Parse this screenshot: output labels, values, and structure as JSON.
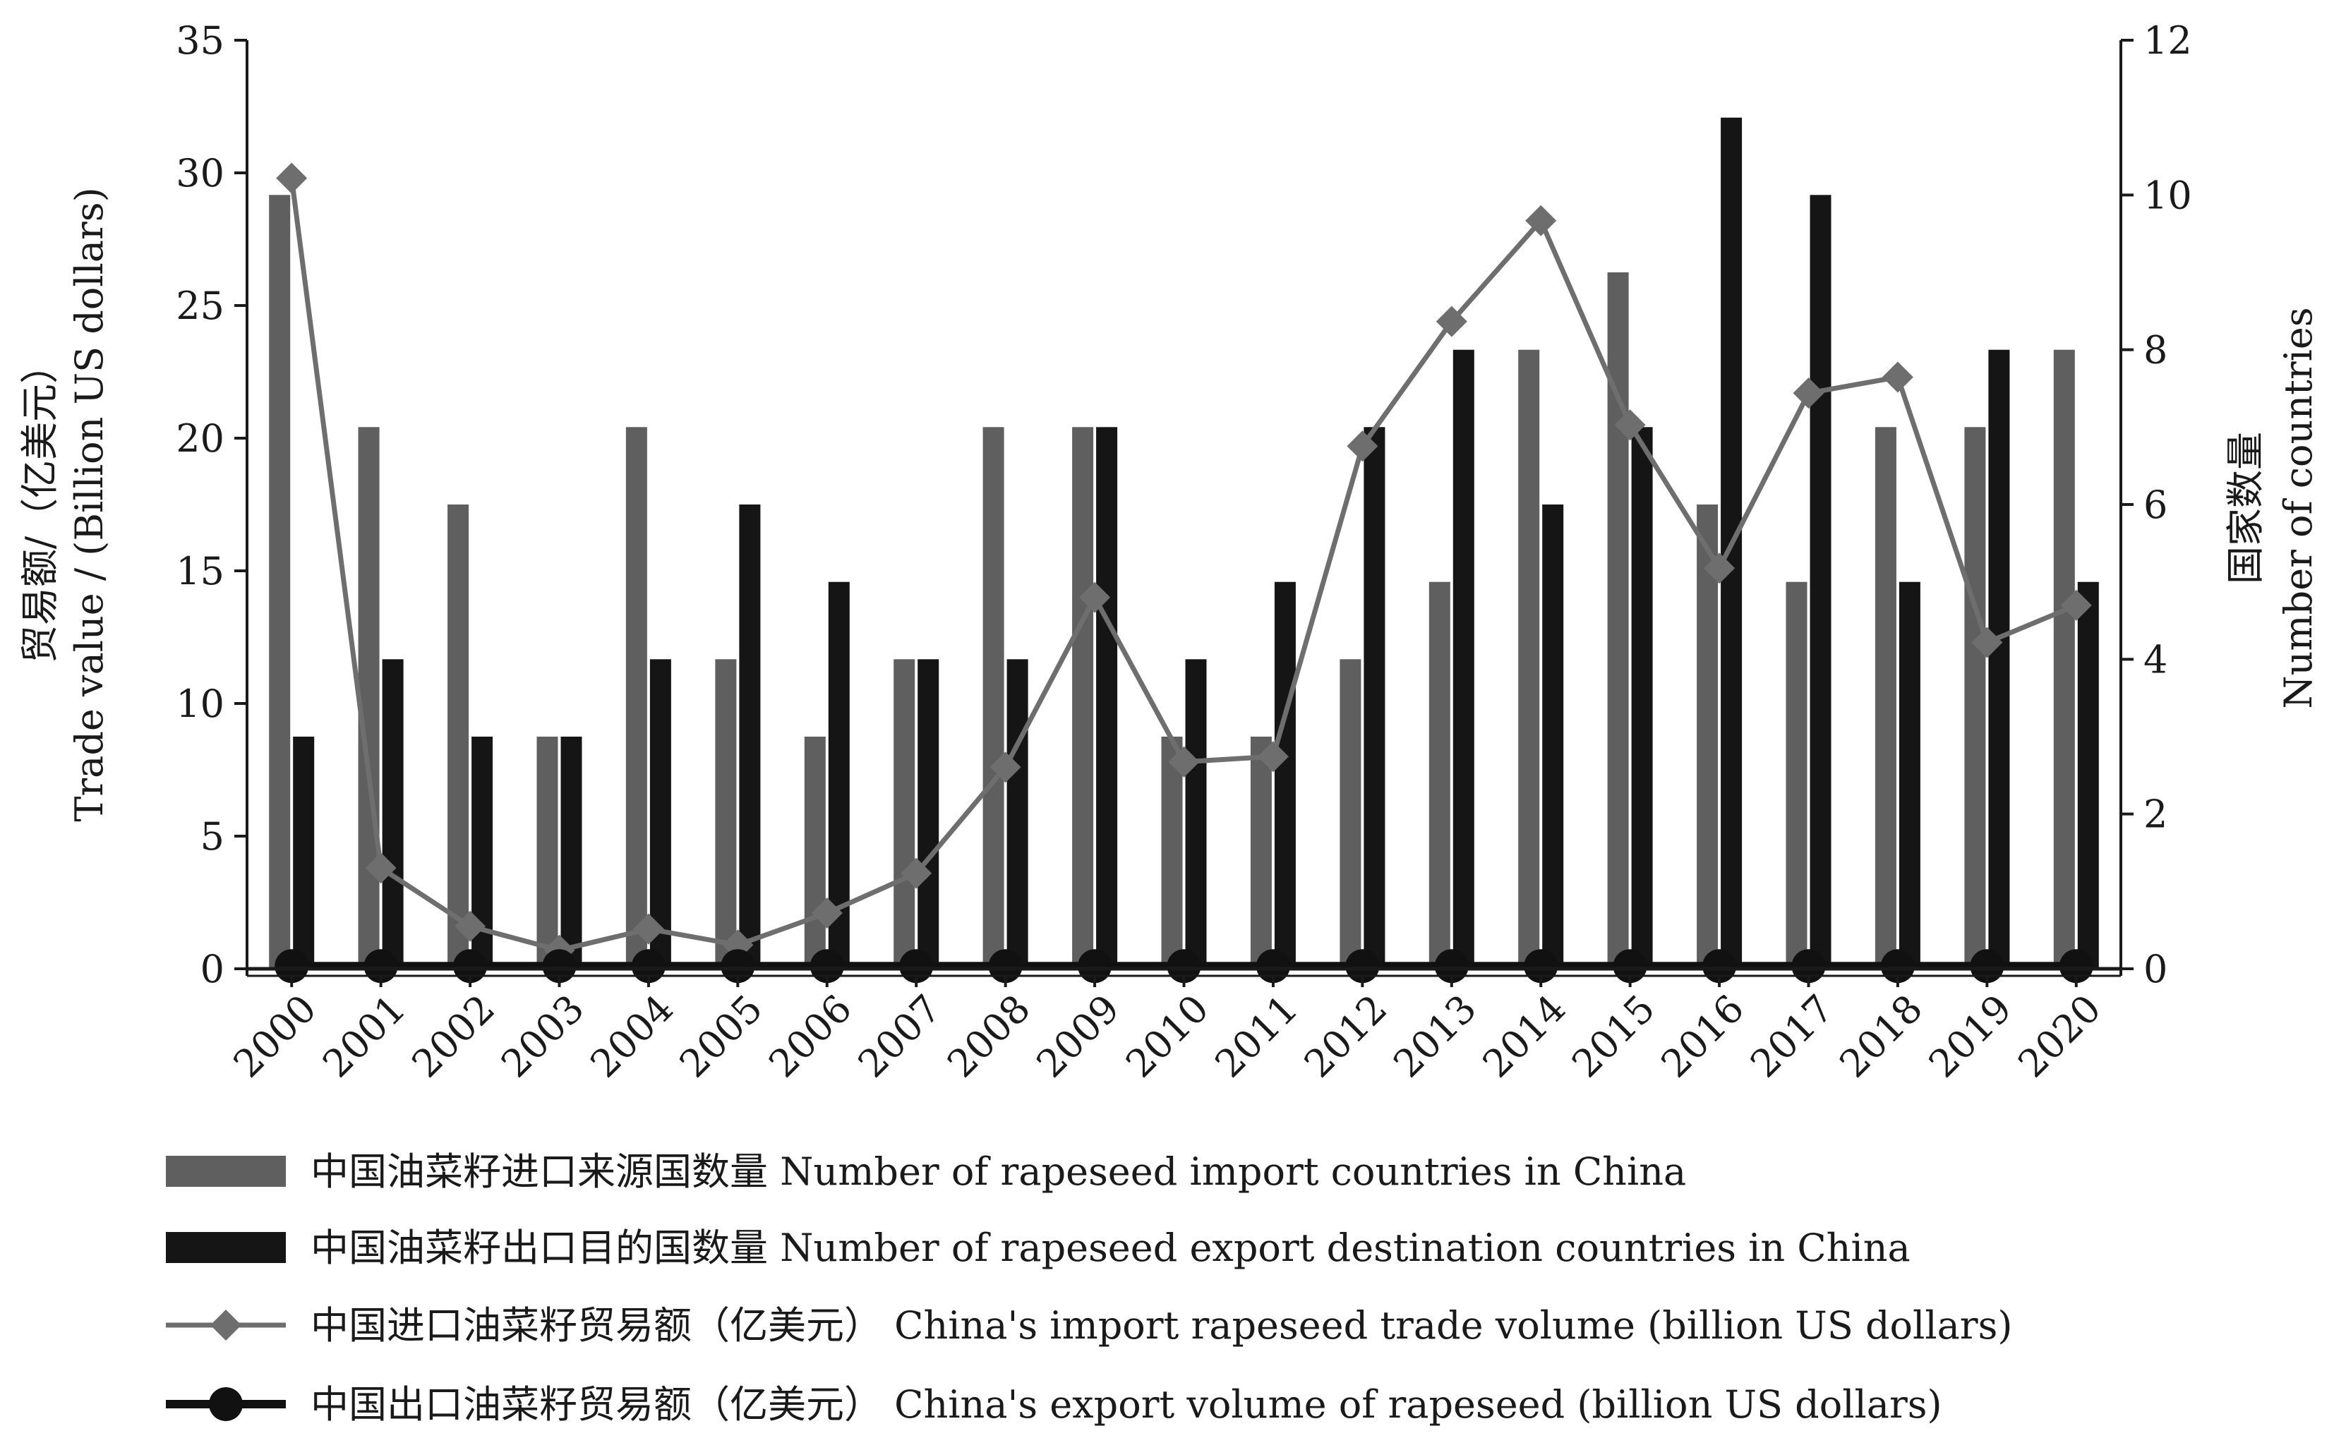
{
  "chart_data": {
    "type": "bar",
    "categories": [
      "2000",
      "2001",
      "2002",
      "2003",
      "2004",
      "2005",
      "2006",
      "2007",
      "2008",
      "2009",
      "2010",
      "2011",
      "2012",
      "2013",
      "2014",
      "2015",
      "2016",
      "2017",
      "2018",
      "2019",
      "2020"
    ],
    "y_left": {
      "label_line1": "贸易额/（亿美元）",
      "label_line2": "Trade value / (Billion US dollars)",
      "ylim": [
        0,
        35
      ],
      "ticks": [
        0,
        5,
        10,
        15,
        20,
        25,
        30,
        35
      ]
    },
    "y_right": {
      "label_line1": "国家数量",
      "label_line2": "Number of countries",
      "ylim": [
        0,
        12
      ],
      "ticks": [
        0,
        2,
        4,
        6,
        8,
        10,
        12
      ]
    },
    "series": [
      {
        "name": "中国油菜籽进口来源国数量 Number of rapeseed import countries in China",
        "kind": "bar",
        "axis": "right",
        "color": "#5f5f5f",
        "values": [
          10,
          7,
          6,
          3,
          7,
          4,
          3,
          4,
          7,
          7,
          3,
          3,
          4,
          5,
          8,
          9,
          6,
          5,
          7,
          7,
          8
        ]
      },
      {
        "name": "中国油菜籽出口目的国数量 Number of rapeseed export destination countries in China",
        "kind": "bar",
        "axis": "right",
        "color": "#151515",
        "values": [
          3,
          4,
          3,
          3,
          4,
          6,
          5,
          4,
          4,
          7,
          4,
          5,
          7,
          8,
          6,
          7,
          11,
          10,
          5,
          8,
          5
        ]
      },
      {
        "name": "中国进口油菜籽贸易额（亿美元） China's import rapeseed trade volume (billion US dollars)",
        "kind": "line",
        "marker": "diamond",
        "axis": "left",
        "color": "#6e6e6e",
        "values": [
          29.8,
          3.8,
          1.6,
          0.7,
          1.5,
          0.9,
          2.1,
          3.6,
          7.6,
          14.0,
          7.8,
          8.0,
          19.7,
          24.4,
          28.2,
          20.5,
          15.1,
          21.7,
          22.3,
          12.3,
          13.7
        ]
      },
      {
        "name": "中国出口油菜籽贸易额（亿美元） China's export volume of rapeseed (billion US dollars)",
        "kind": "line",
        "marker": "circle",
        "axis": "left",
        "color": "#111111",
        "values": [
          0.1,
          0.1,
          0.1,
          0.1,
          0.1,
          0.1,
          0.1,
          0.1,
          0.1,
          0.1,
          0.1,
          0.1,
          0.1,
          0.1,
          0.1,
          0.1,
          0.1,
          0.1,
          0.1,
          0.1,
          0.1
        ]
      }
    ],
    "legend_position": "bottom"
  }
}
